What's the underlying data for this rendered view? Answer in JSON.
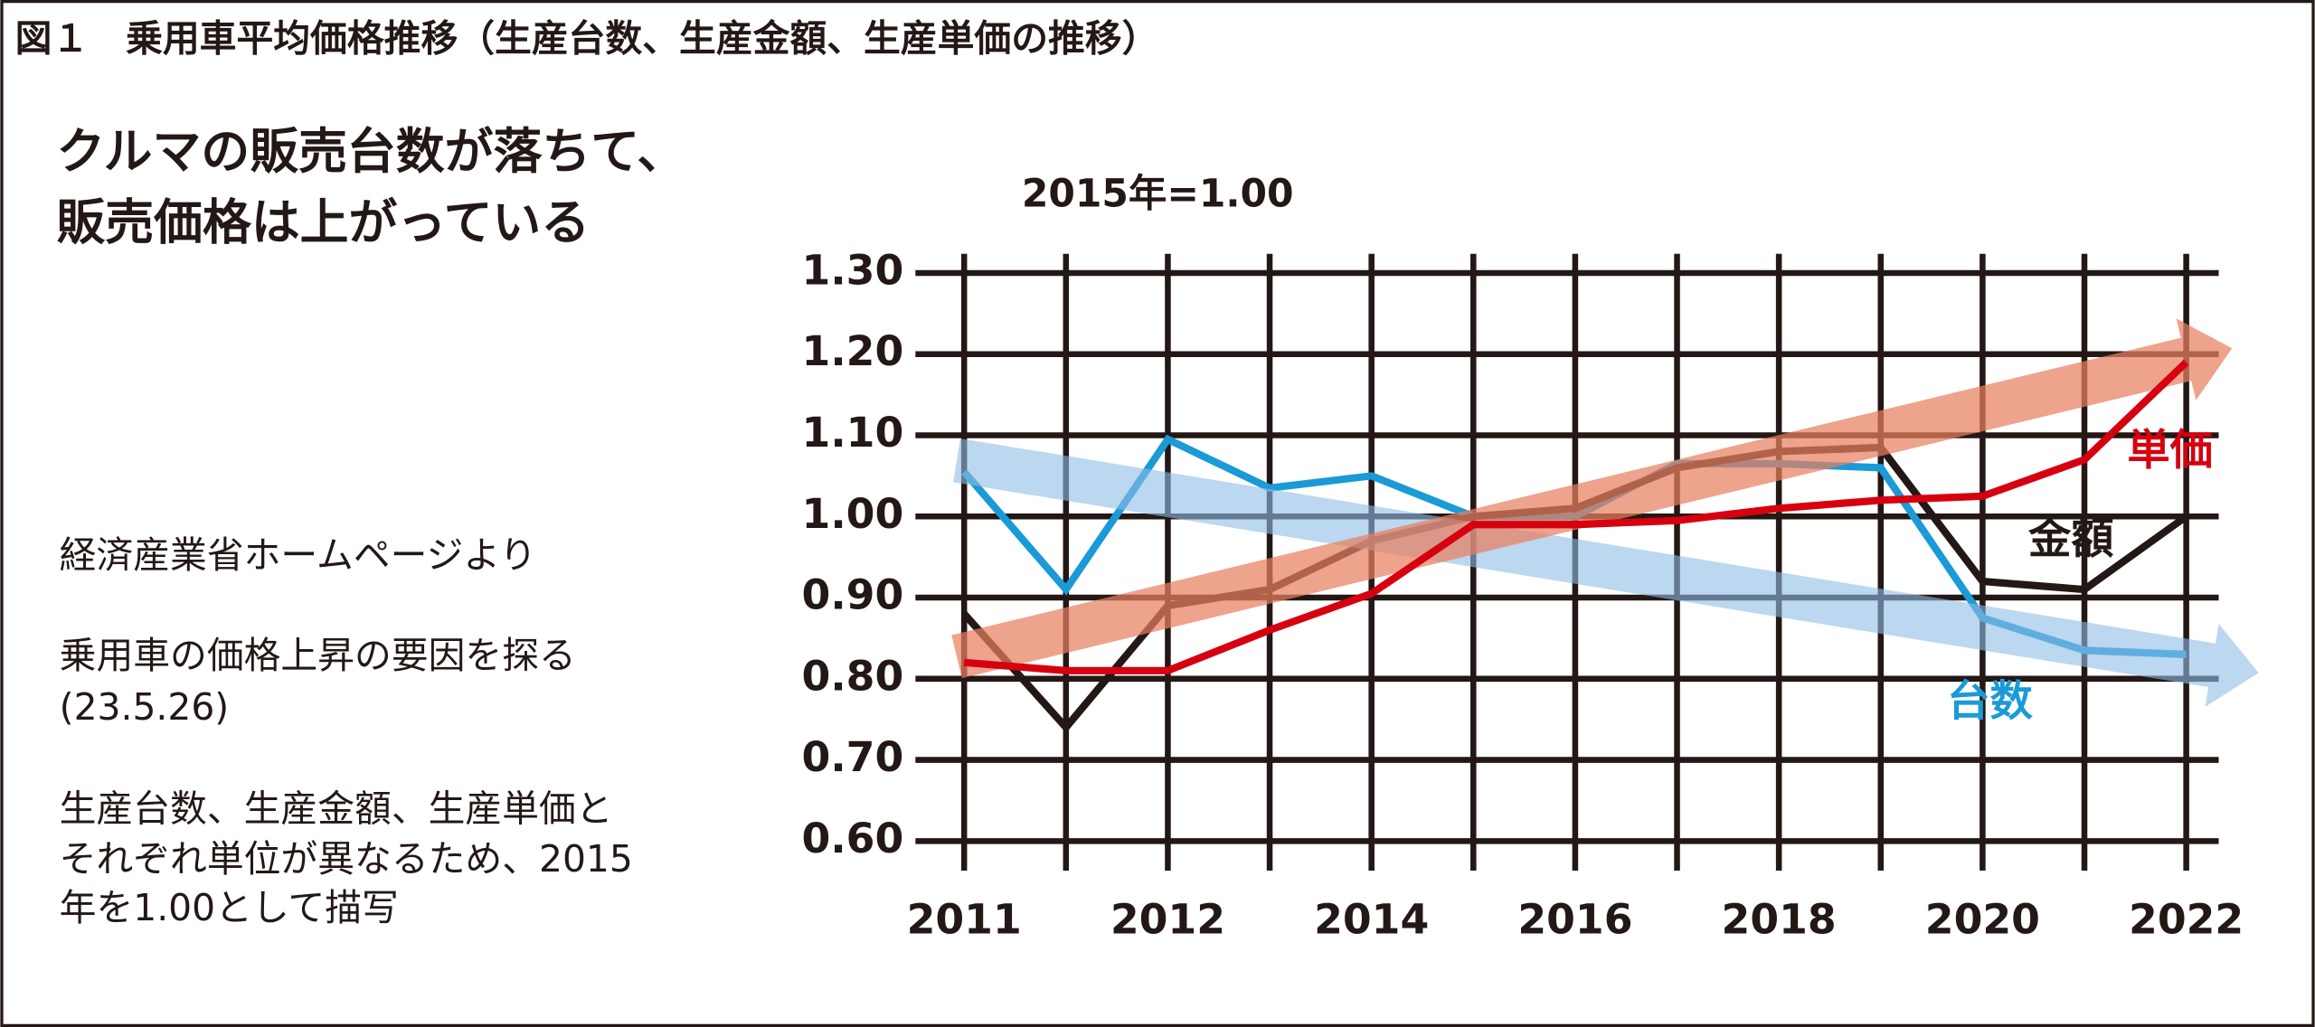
{
  "chart_data": {
    "type": "line",
    "title": "図１　乗用車平均価格推移（生産台数、生産金額、生産単価の推移）",
    "subtitle": [
      "クルマの販売台数が落ちて、",
      "販売価格は上がっている"
    ],
    "notes": [
      "経済産業省ホームページより",
      "乗用車の価格上昇の要因を探る",
      "(23.5.26)",
      "生産台数、生産金額、生産単価と",
      "それぞれ単位が異なるため、2015",
      "年を1.00として描写"
    ],
    "y_label": "2015年=1.00",
    "categories": [
      "2011",
      null,
      "2012",
      null,
      "2014",
      null,
      "2016",
      null,
      "2018",
      null,
      "2020",
      null,
      "2022"
    ],
    "series": [
      {
        "name": "台数",
        "color": "#1a9ad6",
        "values": [
          1.055,
          0.91,
          1.095,
          1.035,
          1.05,
          1.0,
          1.0,
          1.065,
          1.065,
          1.06,
          0.875,
          0.835,
          0.83
        ]
      },
      {
        "name": "金額",
        "color": "#231815",
        "values": [
          0.88,
          0.74,
          0.89,
          0.91,
          0.97,
          1.0,
          1.01,
          1.06,
          1.08,
          1.085,
          0.92,
          0.91,
          1.0
        ]
      },
      {
        "name": "単価",
        "color": "#d7000f",
        "values": [
          0.82,
          0.81,
          0.81,
          0.86,
          0.905,
          0.99,
          0.99,
          0.995,
          1.01,
          1.02,
          1.025,
          1.07,
          1.19
        ]
      }
    ],
    "ylim": [
      0.6,
      1.3
    ],
    "yticks": [
      {
        "value": 0.6,
        "label": "0.60"
      },
      {
        "value": 0.7,
        "label": "0.70"
      },
      {
        "value": 0.8,
        "label": "0.80"
      },
      {
        "value": 0.9,
        "label": "0.90"
      },
      {
        "value": 1.0,
        "label": "1.00"
      },
      {
        "value": 1.1,
        "label": "1.10"
      },
      {
        "value": 1.2,
        "label": "1.20"
      },
      {
        "value": 1.3,
        "label": "1.30"
      }
    ],
    "grid": true
  }
}
